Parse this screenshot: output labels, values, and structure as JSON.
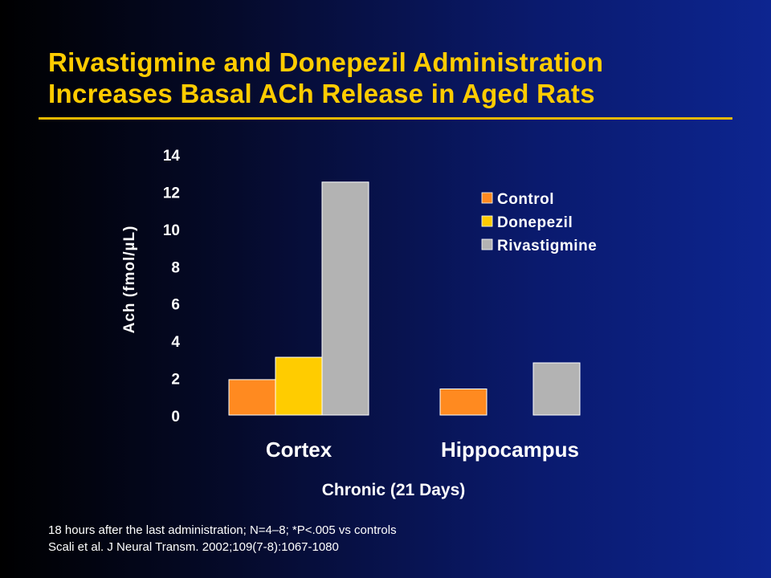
{
  "slide": {
    "title_line1": "Rivastigmine and Donepezil Administration",
    "title_line2": "Increases Basal ACh Release in Aged Rats",
    "footnote_line1": "18 hours after the last administration; N=4–8; *P<.005 vs controls",
    "footnote_line2": "Scali et al. J Neural Transm. 2002;109(7-8):1067-1080"
  },
  "colors": {
    "title": "#ffcc00",
    "control": "#ff8a20",
    "donepezil": "#ffcc00",
    "rivastigmine": "#b3b3b3"
  },
  "chart_data": {
    "type": "bar",
    "categories": [
      "Cortex",
      "Hippocampus"
    ],
    "series": [
      {
        "name": "Control",
        "values": [
          1.9,
          1.4
        ]
      },
      {
        "name": "Donepezil",
        "values": [
          3.1,
          null
        ]
      },
      {
        "name": "Rivastigmine",
        "values": [
          12.5,
          2.8
        ]
      }
    ],
    "xlabel": "Chronic (21 Days)",
    "ylabel": "Ach (fmol/µL)",
    "ylim": [
      0,
      14
    ],
    "yticks": [
      0,
      2,
      4,
      6,
      8,
      10,
      12,
      14
    ],
    "grid": false,
    "legend": "top-right"
  }
}
